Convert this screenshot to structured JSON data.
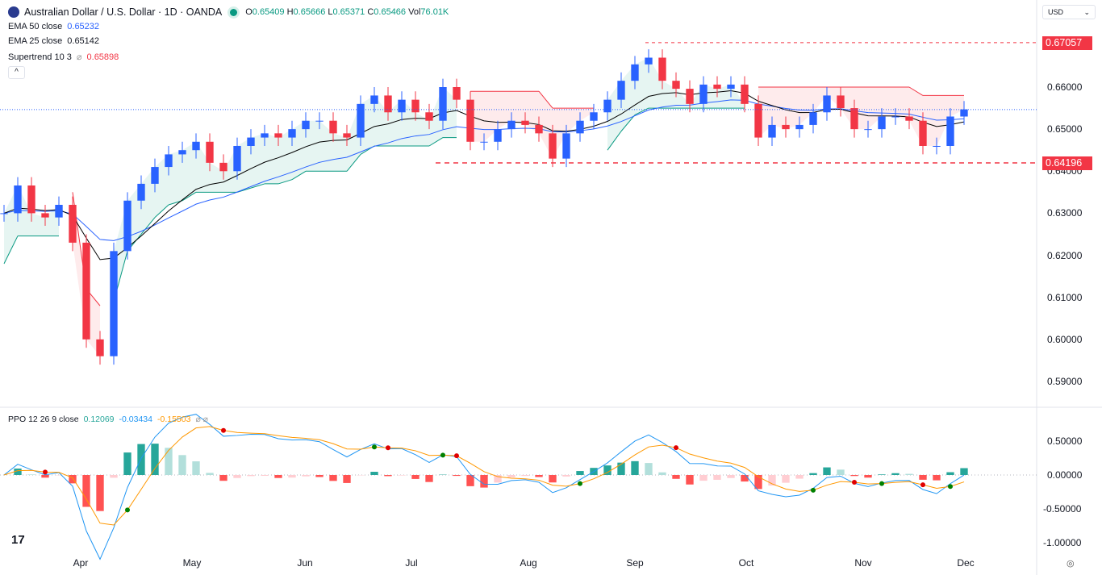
{
  "header": {
    "symbol": "Australian Dollar / U.S. Dollar · 1D · OANDA",
    "open_label": "O",
    "open": "0.65409",
    "high_label": "H",
    "high": "0.65666",
    "low_label": "L",
    "low": "0.65371",
    "close_label": "C",
    "close": "0.65466",
    "vol_label": "Vol",
    "vol": "76.01K"
  },
  "indicators": {
    "ema50_label": "EMA 50 close",
    "ema50": "0.65232",
    "ema25_label": "EMA 25 close",
    "ema25": "0.65142",
    "supertrend_label": "Supertrend 10 3",
    "supertrend": "0.65898",
    "ppo_label": "PPO 12 26 9 close",
    "ppo_hist": "0.12069",
    "ppo": "-0.03434",
    "ppo_signal": "-0.15503"
  },
  "currency": "USD",
  "price_axis": [
    "0.66000",
    "0.65000",
    "0.64000",
    "0.63000",
    "0.62000",
    "0.61000",
    "0.60000",
    "0.59000"
  ],
  "ppo_axis": [
    "0.50000",
    "0.00000",
    "-0.50000",
    "-1.00000"
  ],
  "tags": {
    "resistance": "0.67057",
    "support": "0.64196"
  },
  "logo": "TV",
  "colors": {
    "up": "#2962ff",
    "down": "#f23645",
    "ema50": "#2962ff",
    "ema25": "#000000",
    "st_up": "#089981",
    "st_down": "#f23645",
    "ppo": "#2196f3",
    "signal": "#ff9800"
  },
  "chart_data": {
    "type": "candlestick",
    "symbol": "AUD/USD",
    "months": [
      "Apr",
      "May",
      "Jun",
      "Jul",
      "Aug",
      "Sep",
      "Oct",
      "Nov",
      "Dec"
    ],
    "ylim": [
      0.585,
      0.674
    ],
    "closes": [
      0.63,
      0.6366,
      0.63,
      0.629,
      0.632,
      0.623,
      0.6,
      0.596,
      0.621,
      0.633,
      0.637,
      0.641,
      0.644,
      0.645,
      0.647,
      0.642,
      0.64,
      0.646,
      0.648,
      0.649,
      0.648,
      0.65,
      0.652,
      0.652,
      0.649,
      0.648,
      0.656,
      0.658,
      0.654,
      0.657,
      0.654,
      0.652,
      0.66,
      0.657,
      0.647,
      0.647,
      0.65,
      0.652,
      0.651,
      0.649,
      0.643,
      0.649,
      0.652,
      0.654,
      0.657,
      0.6615,
      0.6654,
      0.667,
      0.6615,
      0.6596,
      0.656,
      0.6606,
      0.6596,
      0.6606,
      0.656,
      0.648,
      0.651,
      0.65,
      0.651,
      0.654,
      0.658,
      0.655,
      0.65,
      0.65,
      0.653,
      0.653,
      0.652,
      0.646,
      0.646,
      0.653,
      0.6547
    ],
    "levels": {
      "resistance": 0.67057,
      "support": 0.64196,
      "last": 0.65466
    },
    "ppo_ylim": [
      -1.1,
      0.8
    ]
  }
}
